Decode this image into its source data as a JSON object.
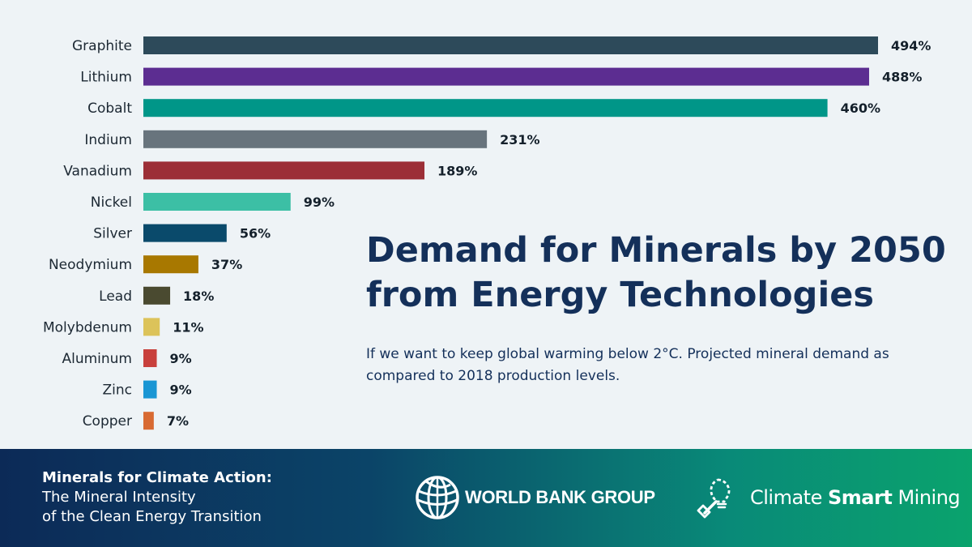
{
  "chart_data": {
    "type": "bar",
    "orientation": "horizontal",
    "categories": [
      "Graphite",
      "Lithium",
      "Cobalt",
      "Indium",
      "Vanadium",
      "Nickel",
      "Silver",
      "Neodymium",
      "Lead",
      "Molybdenum",
      "Aluminum",
      "Zinc",
      "Copper"
    ],
    "values": [
      494,
      488,
      460,
      231,
      189,
      99,
      56,
      37,
      18,
      11,
      9,
      9,
      7
    ],
    "value_labels": [
      "494%",
      "488%",
      "460%",
      "231%",
      "189%",
      "99%",
      "56%",
      "37%",
      "18%",
      "11%",
      "9%",
      "9%",
      "7%"
    ],
    "colors": [
      "#2d4a5a",
      "#5c2d91",
      "#009688",
      "#68747d",
      "#9c2f37",
      "#3cbfa5",
      "#0a4a6b",
      "#a87800",
      "#4a4a30",
      "#dcc35a",
      "#c8403c",
      "#1a96d4",
      "#d86a32"
    ],
    "xlim": [
      0,
      494
    ],
    "unit": "%",
    "grid": false,
    "title": "Demand for Minerals by 2050 from Energy Technologies",
    "title_lines": [
      "Demand for Minerals by 2050",
      "from Energy Technologies"
    ],
    "subtitle": "If we want to keep global warming below 2°C. Projected mineral demand as compared to 2018 production levels.",
    "subtitle_lines": [
      "If we want to keep global warming below 2°C. Projected mineral demand as",
      "compared to 2018 production levels."
    ]
  },
  "footer": {
    "report_title": "Minerals for Climate Action:",
    "report_subtitle_lines": [
      "The Mineral Intensity",
      "of the Clean Energy Transition"
    ],
    "wb_logo_text": "WORLD BANK GROUP",
    "wb_icon": "globe-icon",
    "csm_icon": "lightbulb-shovel-icon",
    "csm_light": "Climate",
    "csm_bold": "Smart",
    "csm_end": "Mining"
  }
}
